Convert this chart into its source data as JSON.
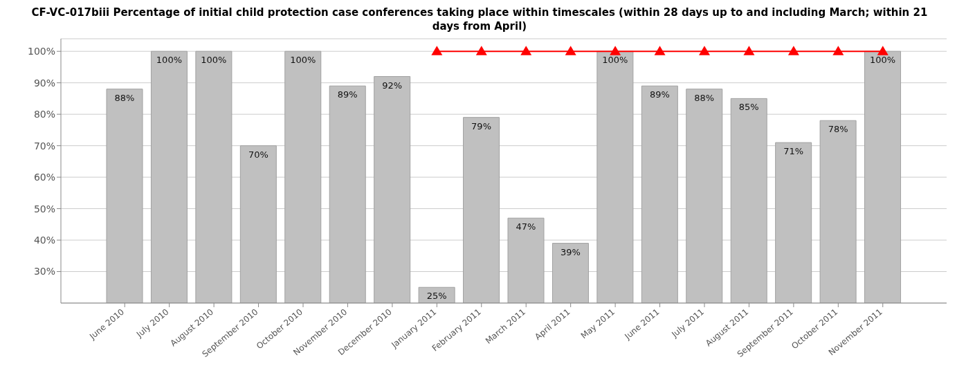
{
  "chart_data": {
    "type": "bar",
    "title": "CF-VC-017biii Percentage of initial child protection case conferences taking place within timescales (within 28 days up to and including March; within 21 days from April)",
    "categories": [
      "June 2010",
      "July 2010",
      "August 2010",
      "September 2010",
      "October 2010",
      "November 2010",
      "December 2010",
      "January 2011",
      "February 2011",
      "March 2011",
      "April 2011",
      "May 2011",
      "June 2011",
      "July 2011",
      "August 2011",
      "September 2011",
      "October 2011",
      "November 2011"
    ],
    "series": [
      {
        "color": "#c0c0c0",
        "values": [
          88,
          100,
          100,
          70,
          100,
          89,
          92,
          25,
          79,
          47,
          39,
          100,
          89,
          88,
          85,
          71,
          78,
          100
        ],
        "value_labels": [
          "88%",
          "100%",
          "100%",
          "70%",
          "100%",
          "89%",
          "92%",
          "25%",
          "79%",
          "47%",
          "39%",
          "100%",
          "89%",
          "88%",
          "85%",
          "71%",
          "78%",
          "100%"
        ]
      },
      {
        "type": "line",
        "color": "#ff0000",
        "marker": "triangle",
        "values": [
          null,
          null,
          null,
          null,
          null,
          null,
          null,
          100,
          100,
          100,
          100,
          100,
          100,
          100,
          100,
          100,
          100,
          100
        ]
      }
    ],
    "ylim": [
      20,
      104
    ],
    "yticks": [
      {
        "value": 30,
        "label": "30%"
      },
      {
        "value": 40,
        "label": "40%"
      },
      {
        "value": 50,
        "label": "50%"
      },
      {
        "value": 60,
        "label": "60%"
      },
      {
        "value": 70,
        "label": "70%"
      },
      {
        "value": 80,
        "label": "80%"
      },
      {
        "value": 90,
        "label": "90%"
      },
      {
        "value": 100,
        "label": "100%"
      }
    ],
    "grid": "y"
  }
}
